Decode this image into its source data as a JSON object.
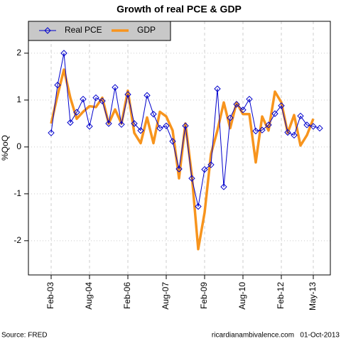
{
  "chart_data": {
    "type": "line",
    "title": "Growth of real PCE & GDP",
    "y_label": "%QoQ",
    "source": "Source: FRED",
    "credit": "ricardianambivalence.com   01-Oct-2013",
    "categories": [
      "Feb-03",
      null,
      null,
      null,
      null,
      null,
      "Aug-04",
      null,
      null,
      null,
      null,
      null,
      "Feb-06",
      null,
      null,
      null,
      null,
      null,
      "Aug-07",
      null,
      null,
      null,
      null,
      null,
      "Feb-09",
      null,
      null,
      null,
      null,
      null,
      "Aug-10",
      null,
      null,
      null,
      null,
      null,
      "Feb-12",
      null,
      null,
      null,
      null,
      "May-13",
      null
    ],
    "series": [
      {
        "name": "Real PCE",
        "color": "#0000cc",
        "marker": "diamond",
        "values": [
          0.3,
          1.32,
          2.0,
          0.52,
          0.74,
          1.02,
          0.44,
          1.05,
          0.98,
          0.5,
          1.27,
          0.48,
          1.12,
          0.5,
          0.35,
          1.1,
          0.7,
          0.4,
          0.45,
          0.12,
          -0.47,
          0.45,
          -0.67,
          -1.27,
          -0.48,
          -0.38,
          1.24,
          -0.85,
          0.62,
          0.91,
          0.79,
          1.02,
          0.34,
          0.36,
          0.47,
          0.71,
          0.88,
          0.31,
          0.25,
          0.66,
          0.47,
          0.44,
          0.4
        ]
      },
      {
        "name": "GDP",
        "color": "#f7941d",
        "values": [
          0.5,
          1.1,
          1.65,
          1.05,
          0.6,
          0.75,
          0.87,
          0.85,
          1.05,
          0.5,
          0.8,
          0.5,
          1.2,
          0.3,
          0.08,
          0.63,
          0.08,
          0.75,
          0.65,
          0.35,
          -0.67,
          0.5,
          -0.6,
          -2.18,
          -1.4,
          -0.15,
          0.35,
          0.95,
          0.4,
          0.95,
          0.7,
          0.7,
          -0.33,
          0.65,
          0.35,
          1.18,
          0.95,
          0.3,
          0.68,
          0.03,
          0.25,
          0.6,
          null
        ]
      }
    ],
    "ylim": [
      -2.73,
      2.68
    ],
    "yticks": [
      -2,
      -1,
      0,
      1,
      2
    ],
    "grid": true,
    "legend": "top-left"
  }
}
